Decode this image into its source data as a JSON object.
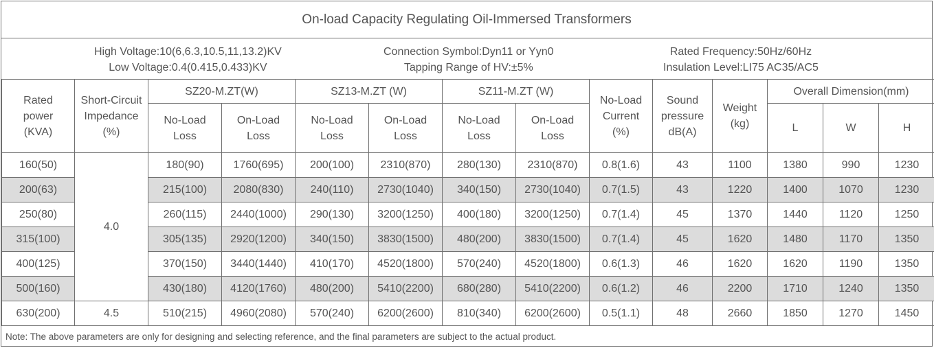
{
  "title": "On-load Capacity Regulating Oil-Immersed Transformers",
  "specs": {
    "high_voltage": "High Voltage:10(6,6.3,10.5,11,13.2)KV",
    "low_voltage": "Low Voltage:0.4(0.415,0.433)KV",
    "connection_symbol": "Connection Symbol:Dyn11 or Yyn0",
    "tapping_range": "Tapping Range of HV:±5%",
    "rated_frequency": "Rated Frequency:50Hz/60Hz",
    "insulation_level": "Insulation Level:LI75 AC35/AC5"
  },
  "headers": {
    "rated_power": [
      "Rated",
      "power",
      "(KVA)"
    ],
    "impedance": [
      "Short-Circuit",
      "Impedance",
      "(%)"
    ],
    "groups": [
      "SZ20-M.ZT(W)",
      "SZ13-M.ZT (W)",
      "SZ11-M.ZT (W)"
    ],
    "no_load_loss": [
      "No-Load",
      "Loss"
    ],
    "on_load_loss": [
      "On-Load",
      "Loss"
    ],
    "no_load_current": [
      "No-Load",
      "Current",
      "(%)"
    ],
    "sound_pressure": [
      "Sound",
      "pressure",
      "dB(A)"
    ],
    "weight": [
      "Weight",
      "(kg)"
    ],
    "overall_dimension": "Overall Dimension(mm)",
    "dims": [
      "L",
      "W",
      "H"
    ]
  },
  "impedance_groups": [
    "4.0",
    "4.5"
  ],
  "rows": [
    {
      "rated_power": "160(50)",
      "sz20_no_load": "180(90)",
      "sz20_on_load": "1760(695)",
      "sz13_no_load": "200(100)",
      "sz13_on_load": "2310(870)",
      "sz11_no_load": "280(130)",
      "sz11_on_load": "2310(870)",
      "no_load_current": "0.8(1.6)",
      "sound": "43",
      "weight": "1100",
      "L": "1380",
      "W": "990",
      "H": "1230"
    },
    {
      "rated_power": "200(63)",
      "sz20_no_load": "215(100)",
      "sz20_on_load": "2080(830)",
      "sz13_no_load": "240(110)",
      "sz13_on_load": "2730(1040)",
      "sz11_no_load": "340(150)",
      "sz11_on_load": "2730(1040)",
      "no_load_current": "0.7(1.5)",
      "sound": "43",
      "weight": "1220",
      "L": "1400",
      "W": "1070",
      "H": "1230"
    },
    {
      "rated_power": "250(80)",
      "sz20_no_load": "260(115)",
      "sz20_on_load": "2440(1000)",
      "sz13_no_load": "290(130)",
      "sz13_on_load": "3200(1250)",
      "sz11_no_load": "400(180)",
      "sz11_on_load": "3200(1250)",
      "no_load_current": "0.7(1.4)",
      "sound": "45",
      "weight": "1370",
      "L": "1440",
      "W": "1120",
      "H": "1250"
    },
    {
      "rated_power": "315(100)",
      "sz20_no_load": "305(135)",
      "sz20_on_load": "2920(1200)",
      "sz13_no_load": "340(150)",
      "sz13_on_load": "3830(1500)",
      "sz11_no_load": "480(200)",
      "sz11_on_load": "3830(1500)",
      "no_load_current": "0.7(1.4)",
      "sound": "45",
      "weight": "1620",
      "L": "1480",
      "W": "1170",
      "H": "1350"
    },
    {
      "rated_power": "400(125)",
      "sz20_no_load": "370(150)",
      "sz20_on_load": "3440(1440)",
      "sz13_no_load": "410(170)",
      "sz13_on_load": "4520(1800)",
      "sz11_no_load": "570(240)",
      "sz11_on_load": "4520(1800)",
      "no_load_current": "0.6(1.3)",
      "sound": "46",
      "weight": "1620",
      "L": "1620",
      "W": "1190",
      "H": "1350"
    },
    {
      "rated_power": "500(160)",
      "sz20_no_load": "430(180)",
      "sz20_on_load": "4120(1760)",
      "sz13_no_load": "480(200)",
      "sz13_on_load": "5410(2200)",
      "sz11_no_load": "680(280)",
      "sz11_on_load": "5410(2200)",
      "no_load_current": "0.6(1.2)",
      "sound": "46",
      "weight": "2200",
      "L": "1710",
      "W": "1240",
      "H": "1350"
    },
    {
      "rated_power": "630(200)",
      "sz20_no_load": "510(215)",
      "sz20_on_load": "4960(2080)",
      "sz13_no_load": "570(240)",
      "sz13_on_load": "6200(2600)",
      "sz11_no_load": "810(340)",
      "sz11_on_load": "6200(2600)",
      "no_load_current": "0.5(1.1)",
      "sound": "48",
      "weight": "2660",
      "L": "1850",
      "W": "1270",
      "H": "1450"
    }
  ],
  "note": "Note: The above parameters are only for designing and selecting  reference, and the final parameters are subject to the actual product.",
  "colors": {
    "border": "#707070",
    "shade": "#dcdcdc",
    "text": "#555555"
  }
}
